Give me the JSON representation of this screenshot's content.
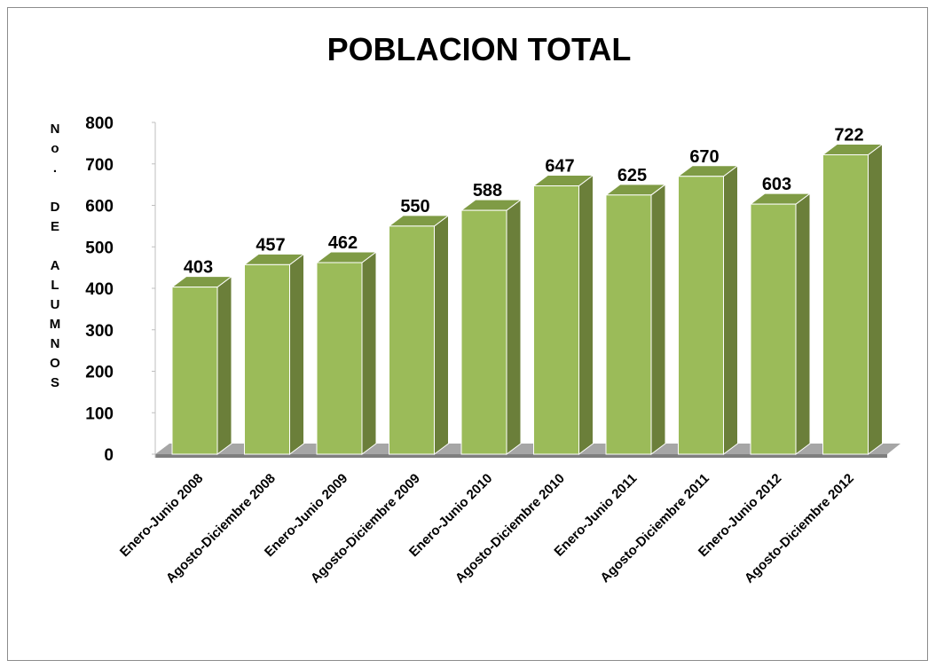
{
  "chart_data": {
    "type": "bar3d",
    "title": "POBLACION TOTAL",
    "y_label": "No. DE ALUMNOS",
    "categories": [
      "Enero-Junio 2008",
      "Agosto-Diciembre 2008",
      "Enero-Junio 2009",
      "Agosto-Diciembre 2009",
      "Enero-Junio 2010",
      "Agosto-Diciembre 2010",
      "Enero-Junio 2011",
      "Agosto-Diciembre 2011",
      "Enero-Junio 2012",
      "Agosto-Diciembre 2012"
    ],
    "values": [
      403,
      457,
      462,
      550,
      588,
      647,
      625,
      670,
      603,
      722
    ],
    "color": "#9bbb59",
    "ylim": [
      0,
      800
    ],
    "yticks": [
      0,
      100,
      200,
      300,
      400,
      500,
      600,
      700,
      800
    ],
    "grid": false
  }
}
